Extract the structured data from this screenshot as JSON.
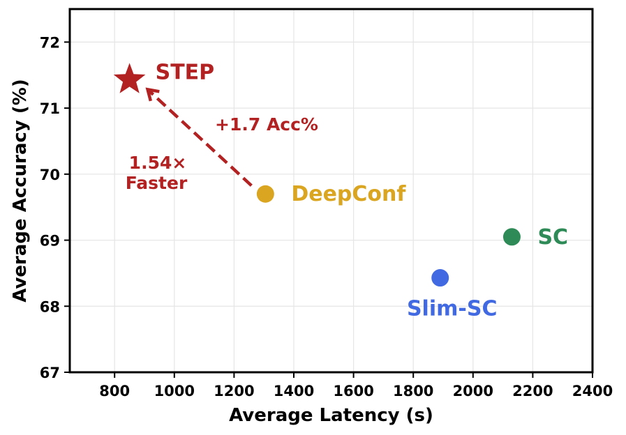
{
  "chart_data": {
    "type": "scatter",
    "title": "",
    "xlabel": "Average Latency (s)",
    "ylabel": "Average Accuracy (%)",
    "xlim": [
      650,
      2400
    ],
    "ylim": [
      67,
      72.5
    ],
    "xticks": [
      800,
      1000,
      1200,
      1400,
      1600,
      1800,
      2000,
      2200,
      2400
    ],
    "yticks": [
      67,
      68,
      69,
      70,
      71,
      72
    ],
    "grid": true,
    "points": [
      {
        "name": "STEP",
        "x": 850,
        "y": 71.43,
        "color": "#b22222",
        "marker": "star",
        "label_position": "right"
      },
      {
        "name": "DeepConf",
        "x": 1305,
        "y": 69.7,
        "color": "#daa520",
        "marker": "circle",
        "label_position": "right"
      },
      {
        "name": "SC",
        "x": 2130,
        "y": 69.05,
        "color": "#2e8b57",
        "marker": "circle",
        "label_position": "right"
      },
      {
        "name": "Slim-SC",
        "x": 1890,
        "y": 68.43,
        "color": "#4169e1",
        "marker": "circle",
        "label_position": "below"
      }
    ],
    "arrow": {
      "from": "DeepConf",
      "to": "STEP",
      "color": "#b22222",
      "style": "dashed"
    },
    "annotations": [
      {
        "text": "+1.7 Acc%",
        "color": "#b22222"
      },
      {
        "text": "1.54×",
        "color": "#b22222"
      },
      {
        "text": "Faster",
        "color": "#b22222"
      }
    ]
  }
}
